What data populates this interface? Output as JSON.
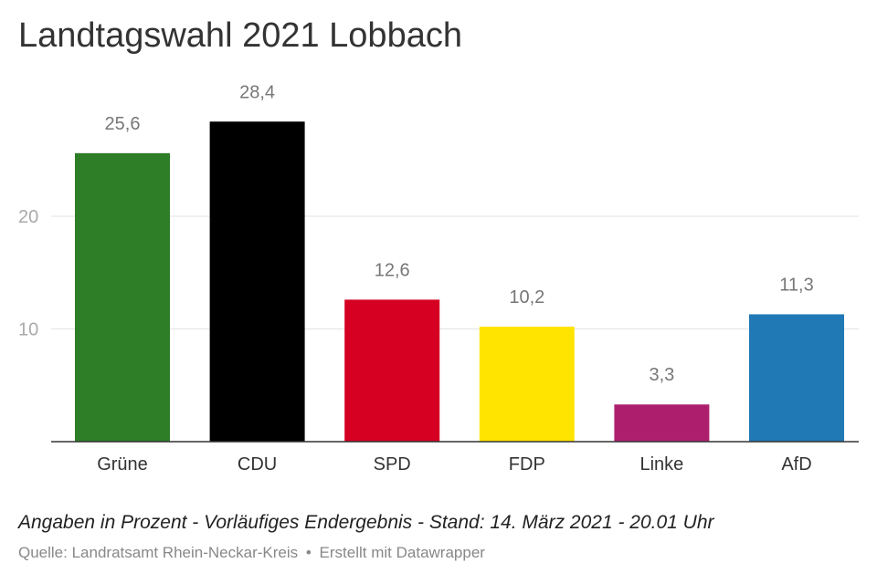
{
  "title": "Landtagswahl 2021 Lobbach",
  "note": "Angaben in Prozent - Vorläufiges Endergebnis - Stand: 14. März 2021 - 20.01 Uhr",
  "source": {
    "label": "Quelle: Landratsamt Rhein-Neckar-Kreis",
    "separator": "•",
    "credit": "Erstellt mit Datawrapper"
  },
  "chart_data": {
    "type": "bar",
    "categories": [
      "Grüne",
      "CDU",
      "SPD",
      "FDP",
      "Linke",
      "AfD"
    ],
    "values": [
      25.6,
      28.4,
      12.6,
      10.2,
      3.3,
      11.3
    ],
    "value_labels": [
      "25,6",
      "28,4",
      "12,6",
      "10,2",
      "3,3",
      "11,3"
    ],
    "colors": [
      "#2e7d27",
      "#000000",
      "#d50022",
      "#ffe400",
      "#ad1f6d",
      "#2078b4"
    ],
    "yticks": [
      10,
      20
    ],
    "ytick_labels": [
      "10",
      "20"
    ],
    "ylim": [
      0,
      30
    ],
    "grid": true,
    "xlabel": "",
    "ylabel": ""
  }
}
